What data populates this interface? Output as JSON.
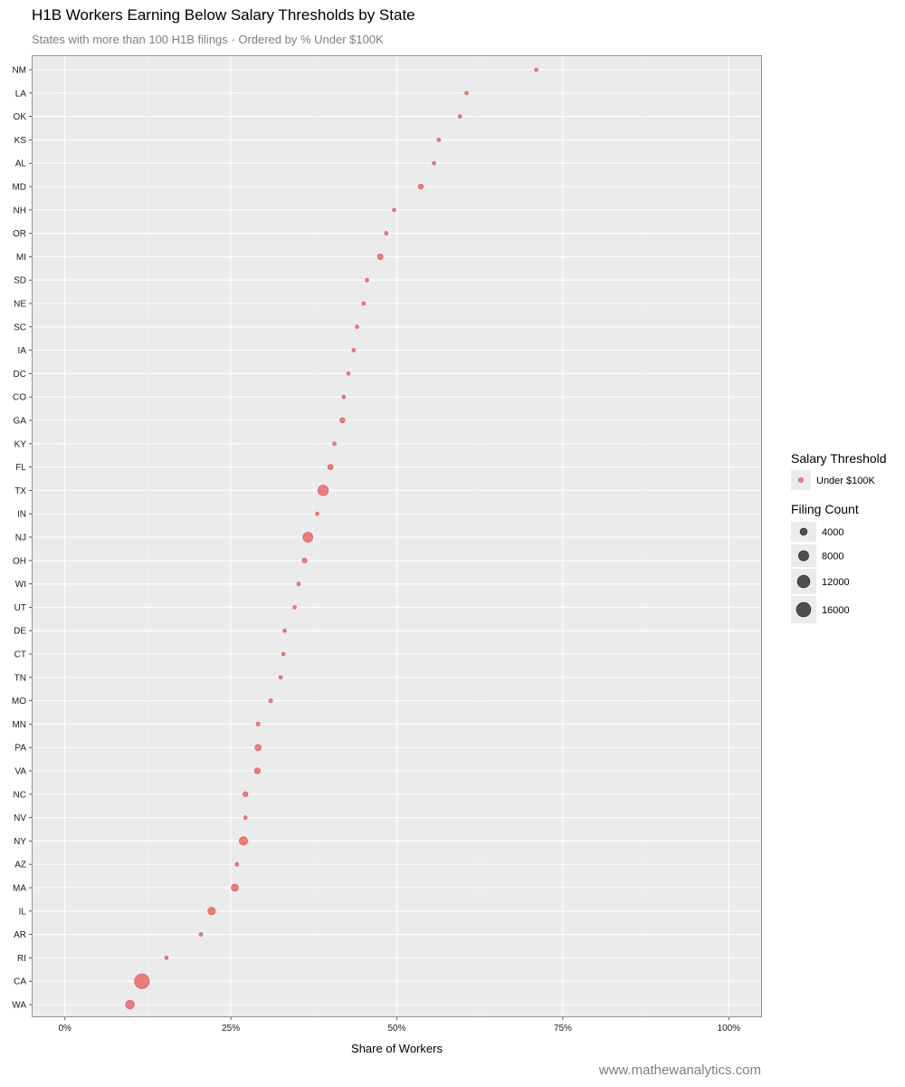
{
  "chart_data": {
    "type": "scatter",
    "title": "H1B Workers Earning Below Salary Thresholds by State",
    "subtitle": "States with more than 100 H1B filings · Ordered by % Under $100K",
    "xlabel": "Share of Workers",
    "ylabel": "",
    "xlim": [
      -0.05,
      1.05
    ],
    "x_ticks": [
      0,
      0.25,
      0.5,
      0.75,
      1.0
    ],
    "x_tick_labels": [
      "0%",
      "25%",
      "50%",
      "75%",
      "100%"
    ],
    "grid": true,
    "legend_position": "right",
    "color_legend": {
      "title": "Salary Threshold",
      "entries": [
        {
          "label": "Under $100K",
          "color": "#e8686a"
        }
      ]
    },
    "size_legend": {
      "title": "Filing Count",
      "entries": [
        {
          "label": "4000",
          "value": 4000
        },
        {
          "label": "8000",
          "value": 8000
        },
        {
          "label": "12000",
          "value": 12000
        },
        {
          "label": "16000",
          "value": 16000
        }
      ]
    },
    "caption": "www.mathewanalytics.com",
    "series": [
      {
        "color": "#e8686a",
        "points": [
          {
            "state": "NM",
            "x": 0.71,
            "count": 150
          },
          {
            "state": "LA",
            "x": 0.605,
            "count": 400
          },
          {
            "state": "OK",
            "x": 0.595,
            "count": 300
          },
          {
            "state": "KS",
            "x": 0.563,
            "count": 400
          },
          {
            "state": "AL",
            "x": 0.556,
            "count": 450
          },
          {
            "state": "MD",
            "x": 0.536,
            "count": 2000
          },
          {
            "state": "NH",
            "x": 0.496,
            "count": 150
          },
          {
            "state": "OR",
            "x": 0.484,
            "count": 450
          },
          {
            "state": "MI",
            "x": 0.475,
            "count": 2500
          },
          {
            "state": "SD",
            "x": 0.455,
            "count": 150
          },
          {
            "state": "NE",
            "x": 0.45,
            "count": 400
          },
          {
            "state": "SC",
            "x": 0.44,
            "count": 500
          },
          {
            "state": "IA",
            "x": 0.435,
            "count": 450
          },
          {
            "state": "DC",
            "x": 0.427,
            "count": 450
          },
          {
            "state": "CO",
            "x": 0.42,
            "count": 800
          },
          {
            "state": "GA",
            "x": 0.418,
            "count": 2000
          },
          {
            "state": "KY",
            "x": 0.406,
            "count": 550
          },
          {
            "state": "FL",
            "x": 0.4,
            "count": 2200
          },
          {
            "state": "TX",
            "x": 0.389,
            "count": 8500
          },
          {
            "state": "IN",
            "x": 0.38,
            "count": 900
          },
          {
            "state": "NJ",
            "x": 0.366,
            "count": 7500
          },
          {
            "state": "OH",
            "x": 0.361,
            "count": 1800
          },
          {
            "state": "WI",
            "x": 0.352,
            "count": 900
          },
          {
            "state": "UT",
            "x": 0.346,
            "count": 700
          },
          {
            "state": "DE",
            "x": 0.331,
            "count": 550
          },
          {
            "state": "CT",
            "x": 0.329,
            "count": 800
          },
          {
            "state": "TN",
            "x": 0.325,
            "count": 1000
          },
          {
            "state": "MO",
            "x": 0.31,
            "count": 1200
          },
          {
            "state": "MN",
            "x": 0.291,
            "count": 1200
          },
          {
            "state": "PA",
            "x": 0.291,
            "count": 3000
          },
          {
            "state": "VA",
            "x": 0.29,
            "count": 2700
          },
          {
            "state": "NC",
            "x": 0.272,
            "count": 2000
          },
          {
            "state": "NV",
            "x": 0.272,
            "count": 300
          },
          {
            "state": "NY",
            "x": 0.269,
            "count": 5500
          },
          {
            "state": "AZ",
            "x": 0.259,
            "count": 1200
          },
          {
            "state": "MA",
            "x": 0.256,
            "count": 4000
          },
          {
            "state": "IL",
            "x": 0.221,
            "count": 4500
          },
          {
            "state": "AR",
            "x": 0.205,
            "count": 1000
          },
          {
            "state": "RI",
            "x": 0.153,
            "count": 500
          },
          {
            "state": "CA",
            "x": 0.116,
            "count": 17000
          },
          {
            "state": "WA",
            "x": 0.098,
            "count": 6000
          }
        ]
      }
    ]
  }
}
